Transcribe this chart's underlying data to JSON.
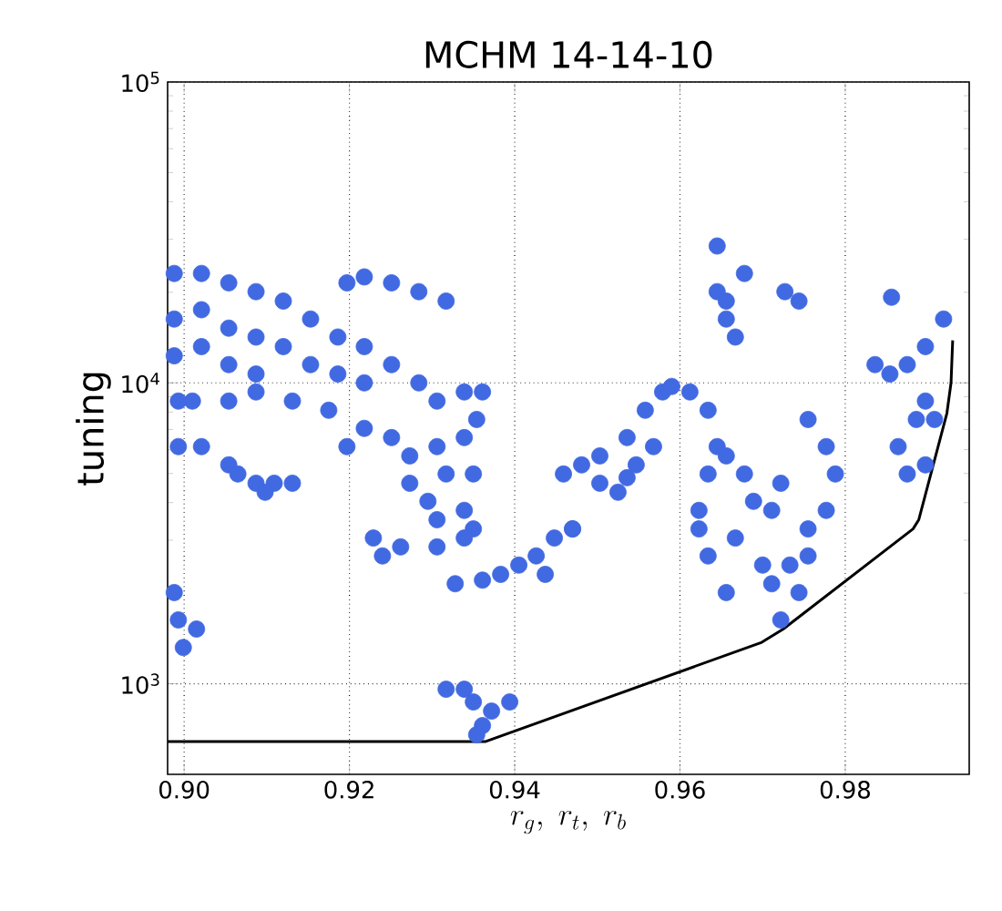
{
  "chart_data": {
    "type": "scatter",
    "title": "MCHM 14-14-10",
    "xlabel": "r_g,\\; r_t,\\; r_b",
    "ylabel": "tuning",
    "xlim": [
      0.898,
      0.995
    ],
    "ylim": [
      500,
      100000
    ],
    "log": "y",
    "grid": true,
    "marker": "circle",
    "xticks": [
      {
        "value": 0.9,
        "label": "0.90"
      },
      {
        "value": 0.92,
        "label": "0.92"
      },
      {
        "value": 0.94,
        "label": "0.94"
      },
      {
        "value": 0.96,
        "label": "0.96"
      },
      {
        "value": 0.98,
        "label": "0.98"
      }
    ],
    "yticks": [
      {
        "value": 1000,
        "label": "10$^{3}$"
      },
      {
        "value": 10000,
        "label": "10$^{4}$"
      },
      {
        "value": 100000,
        "label": "10$^{5}$"
      }
    ],
    "series": [
      {
        "type": "scatter",
        "color": "#4169e1",
        "x": [
          0.8988,
          0.8988,
          0.8988,
          0.9021,
          0.9021,
          0.9021,
          0.9054,
          0.9054,
          0.9054,
          0.9087,
          0.9087,
          0.9087,
          0.912,
          0.912,
          0.9153,
          0.9153,
          0.9186,
          0.9186,
          0.9218,
          0.9218,
          0.9251,
          0.9284,
          0.9306,
          0.9339,
          0.9361,
          0.9197,
          0.9218,
          0.9251,
          0.9284,
          0.9317,
          0.9054,
          0.9087,
          0.9131,
          0.9175,
          0.9218,
          0.9251,
          0.9197,
          0.9273,
          0.9306,
          0.9339,
          0.9354,
          0.8993,
          0.901,
          0.8993,
          0.9021,
          0.9054,
          0.9087,
          0.9109,
          0.9065,
          0.9098,
          0.9131,
          0.9273,
          0.9317,
          0.935,
          0.9295,
          0.9339,
          0.9306,
          0.935,
          0.9229,
          0.9262,
          0.9306,
          0.9339,
          0.924,
          0.8988,
          0.8993,
          0.8999,
          0.9015,
          0.9328,
          0.9361,
          0.9383,
          0.9405,
          0.9426,
          0.9448,
          0.947,
          0.9437,
          0.9317,
          0.9339,
          0.935,
          0.9372,
          0.9394,
          0.9361,
          0.9354,
          0.9459,
          0.9481,
          0.9503,
          0.9536,
          0.9558,
          0.9579,
          0.959,
          0.9525,
          0.9503,
          0.9547,
          0.9568,
          0.9536,
          0.947,
          0.9612,
          0.9634,
          0.9645,
          0.9634,
          0.9623,
          0.9634,
          0.9656,
          0.9678,
          0.9689,
          0.9711,
          0.9722,
          0.9667,
          0.9656,
          0.9623,
          0.9645,
          0.9645,
          0.9656,
          0.9678,
          0.9656,
          0.9667,
          0.9727,
          0.9744,
          0.97,
          0.9711,
          0.9722,
          0.9733,
          0.9744,
          0.9755,
          0.9755,
          0.9777,
          0.9788,
          0.9755,
          0.9777,
          0.9836,
          0.9854,
          0.9875,
          0.9897,
          0.9919,
          0.9886,
          0.9897,
          0.9875,
          0.9864,
          0.9908,
          0.9897,
          0.9856
        ],
        "values": [
          23100,
          16300,
          12300,
          23100,
          17500,
          13200,
          21500,
          15200,
          11500,
          20100,
          14200,
          10700,
          18700,
          13200,
          16300,
          11500,
          14200,
          10700,
          13200,
          10000,
          11500,
          10000,
          8700,
          9330,
          9330,
          21500,
          22500,
          21500,
          20100,
          18700,
          8700,
          9330,
          8700,
          8110,
          7060,
          6580,
          6140,
          5720,
          6140,
          6580,
          7560,
          8700,
          8700,
          6140,
          6140,
          5340,
          4640,
          4640,
          4980,
          4330,
          4640,
          4640,
          4980,
          4980,
          4040,
          3770,
          3510,
          3270,
          3050,
          2850,
          2850,
          3050,
          2660,
          2010,
          1630,
          1320,
          1520,
          2150,
          2210,
          2310,
          2480,
          2660,
          3050,
          3270,
          2310,
          959,
          959,
          870,
          811,
          870,
          726,
          677,
          4980,
          5340,
          5720,
          6580,
          8110,
          9330,
          9730,
          4330,
          4640,
          5340,
          6140,
          4840,
          3270,
          9330,
          8110,
          6140,
          4980,
          3270,
          2660,
          5720,
          4980,
          4040,
          3770,
          4640,
          3050,
          2010,
          3770,
          28500,
          20100,
          18700,
          23100,
          16300,
          14200,
          20100,
          18700,
          2480,
          2150,
          1630,
          2480,
          2010,
          2660,
          7560,
          6140,
          4980,
          3270,
          3770,
          11500,
          10700,
          11500,
          13200,
          16300,
          7560,
          5340,
          4980,
          6140,
          7560,
          8700,
          19260
        ]
      },
      {
        "type": "line",
        "color": "#000000",
        "marker": "none",
        "x": [
          0.898,
          0.9365,
          0.9699,
          0.9725,
          0.9882,
          0.9889,
          0.9923,
          0.9928,
          0.993
        ],
        "values": [
          643,
          643,
          1373,
          1520,
          3270,
          3510,
          7930,
          10000,
          13840
        ]
      }
    ]
  }
}
